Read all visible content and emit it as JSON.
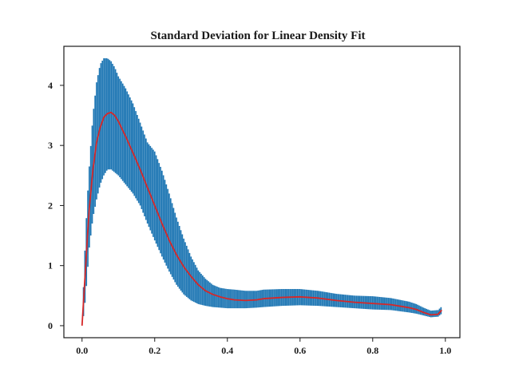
{
  "chart_data": {
    "type": "line",
    "title": "Standard Deviation for Linear Density Fit",
    "xlabel": "",
    "ylabel": "",
    "xlim": [
      -0.05,
      1.04
    ],
    "ylim": [
      -0.2,
      4.65
    ],
    "grid": false,
    "x_ticks": [
      0.0,
      0.2,
      0.4,
      0.6,
      0.8,
      1.0
    ],
    "x_tick_labels": [
      "0.0",
      "0.2",
      "0.4",
      "0.6",
      "0.8",
      "1.0"
    ],
    "y_ticks": [
      0,
      1,
      2,
      3,
      4
    ],
    "y_tick_labels": [
      "0",
      "1",
      "2",
      "3",
      "4"
    ],
    "mean_color": "#d62728",
    "band_color": "#1f77b4",
    "series": [
      {
        "kind": "mean-line",
        "x": [
          0.0,
          0.005,
          0.01,
          0.015,
          0.02,
          0.03,
          0.04,
          0.05,
          0.06,
          0.07,
          0.08,
          0.09,
          0.1,
          0.12,
          0.14,
          0.16,
          0.18,
          0.2,
          0.22,
          0.24,
          0.26,
          0.28,
          0.3,
          0.32,
          0.34,
          0.36,
          0.38,
          0.4,
          0.42,
          0.45,
          0.48,
          0.5,
          0.55,
          0.6,
          0.65,
          0.7,
          0.75,
          0.8,
          0.85,
          0.9,
          0.92,
          0.94,
          0.96,
          0.98,
          0.99
        ],
        "y": [
          0.0,
          0.5,
          1.0,
          1.5,
          1.95,
          2.6,
          3.05,
          3.3,
          3.47,
          3.53,
          3.55,
          3.5,
          3.4,
          3.15,
          2.88,
          2.6,
          2.3,
          2.0,
          1.7,
          1.42,
          1.18,
          0.98,
          0.82,
          0.68,
          0.58,
          0.52,
          0.48,
          0.45,
          0.43,
          0.42,
          0.43,
          0.45,
          0.47,
          0.48,
          0.46,
          0.42,
          0.39,
          0.37,
          0.35,
          0.3,
          0.27,
          0.22,
          0.18,
          0.19,
          0.26
        ]
      },
      {
        "kind": "std-band",
        "x": [
          0.0,
          0.005,
          0.01,
          0.015,
          0.02,
          0.03,
          0.04,
          0.05,
          0.06,
          0.07,
          0.08,
          0.09,
          0.1,
          0.12,
          0.14,
          0.16,
          0.18,
          0.2,
          0.22,
          0.24,
          0.26,
          0.28,
          0.3,
          0.32,
          0.34,
          0.36,
          0.38,
          0.4,
          0.42,
          0.45,
          0.48,
          0.5,
          0.55,
          0.6,
          0.65,
          0.7,
          0.75,
          0.8,
          0.85,
          0.9,
          0.92,
          0.94,
          0.96,
          0.98,
          0.99
        ],
        "lower": [
          0.0,
          0.2,
          0.5,
          0.9,
          1.3,
          1.8,
          2.1,
          2.35,
          2.5,
          2.6,
          2.6,
          2.55,
          2.5,
          2.35,
          2.2,
          2.0,
          1.7,
          1.42,
          1.15,
          0.9,
          0.68,
          0.52,
          0.42,
          0.36,
          0.33,
          0.31,
          0.3,
          0.29,
          0.29,
          0.29,
          0.3,
          0.31,
          0.33,
          0.34,
          0.33,
          0.31,
          0.29,
          0.27,
          0.26,
          0.22,
          0.2,
          0.17,
          0.14,
          0.15,
          0.2
        ],
        "upper": [
          0.0,
          0.8,
          1.55,
          2.15,
          2.65,
          3.5,
          4.05,
          4.35,
          4.45,
          4.45,
          4.4,
          4.3,
          4.15,
          3.95,
          3.7,
          3.38,
          3.05,
          2.9,
          2.58,
          2.2,
          1.8,
          1.45,
          1.15,
          0.92,
          0.78,
          0.68,
          0.63,
          0.61,
          0.6,
          0.58,
          0.58,
          0.6,
          0.61,
          0.61,
          0.58,
          0.53,
          0.5,
          0.49,
          0.46,
          0.4,
          0.36,
          0.3,
          0.25,
          0.26,
          0.32
        ]
      }
    ]
  }
}
